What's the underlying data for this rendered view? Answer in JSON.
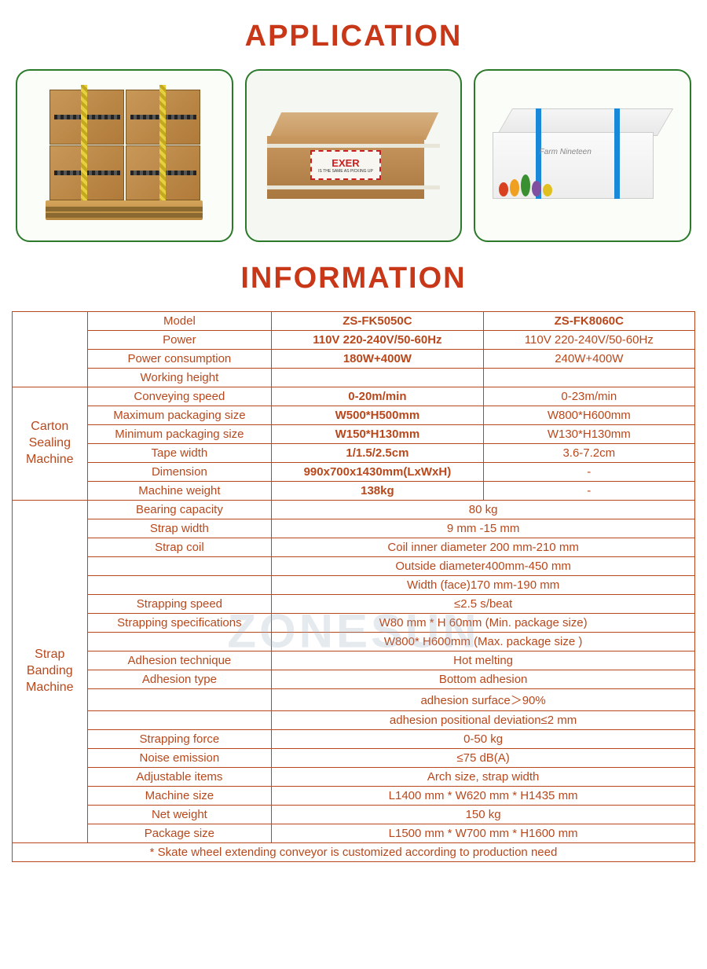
{
  "titles": {
    "application": "APPLICATION",
    "information": "INFORMATION"
  },
  "watermark": "ZONESUN",
  "app_cards": {
    "box2_label": "EXER",
    "box2_sub": "IS THE SAME AS PICKING UP",
    "box3_label": "Farm Nineteen"
  },
  "table": {
    "colors": {
      "border": "#b8481c",
      "text": "#b8481c"
    },
    "header_rows": [
      {
        "label": "Model",
        "c1": "ZS-FK5050C",
        "c2": "ZS-FK8060C",
        "bold": true
      },
      {
        "label": "Power",
        "c1": "110V 220-240V/50-60Hz",
        "c2": "110V 220-240V/50-60Hz",
        "bold_c1": true
      },
      {
        "label": "Power consumption",
        "c1": "180W+400W",
        "c2": "240W+400W",
        "bold_c1": true
      },
      {
        "label": "Working height",
        "c1": "",
        "c2": ""
      }
    ],
    "section1_label": "Carton\nSealing\nMachine",
    "section1": [
      {
        "label": "Conveying speed",
        "c1": "0-20m/min",
        "c2": "0-23m/min",
        "bold_c1": true
      },
      {
        "label": "Maximum packaging size",
        "c1": "W500*H500mm",
        "c2": "W800*H600mm",
        "bold_c1": true
      },
      {
        "label": "Minimum packaging size",
        "c1": "W150*H130mm",
        "c2": "W130*H130mm",
        "bold_c1": true
      },
      {
        "label": "Tape width",
        "c1": "1/1.5/2.5cm",
        "c2": "3.6-7.2cm",
        "bold_c1": true
      },
      {
        "label": "Dimension",
        "c1": "990x700x1430mm(LxWxH)",
        "c2": "-",
        "bold_c1": true
      },
      {
        "label": "Machine weight",
        "c1": "138kg",
        "c2": "-",
        "bold_c1": true
      }
    ],
    "section2_label": "Strap\nBanding\nMachine",
    "section2": [
      {
        "label": "Bearing capacity",
        "merged": "80 kg"
      },
      {
        "label": "Strap width",
        "merged": "9 mm -15 mm"
      },
      {
        "label": "Strap coil",
        "merged": "Coil inner diameter 200 mm-210 mm"
      },
      {
        "label": "",
        "merged": "Outside diameter400mm-450 mm"
      },
      {
        "label": "",
        "merged": "Width (face)170 mm-190 mm"
      },
      {
        "label": "Strapping speed",
        "merged": "≤2.5 s/beat"
      },
      {
        "label": "Strapping specifications",
        "merged": "W80 mm * H 60mm (Min. package size)"
      },
      {
        "label": "",
        "merged": "W800* H600mm (Max. package size )"
      },
      {
        "label": "Adhesion technique",
        "merged": "Hot melting"
      },
      {
        "label": "Adhesion type",
        "merged": "Bottom adhesion"
      },
      {
        "label": "",
        "merged": "adhesion surface＞90%"
      },
      {
        "label": "",
        "merged": "adhesion positional deviation≤2 mm"
      },
      {
        "label": "Strapping force",
        "merged": "0-50 kg"
      },
      {
        "label": "Noise emission",
        "merged": "≤75 dB(A)"
      },
      {
        "label": "Adjustable items",
        "merged": "Arch size, strap width"
      },
      {
        "label": "Machine size",
        "merged": "L1400 mm * W620 mm * H1435 mm"
      },
      {
        "label": "Net weight",
        "merged": "150 kg"
      },
      {
        "label": "Package size",
        "merged": "L1500 mm * W700 mm * H1600 mm"
      }
    ],
    "footnote": "* Skate wheel extending conveyor is customized according to production need"
  }
}
